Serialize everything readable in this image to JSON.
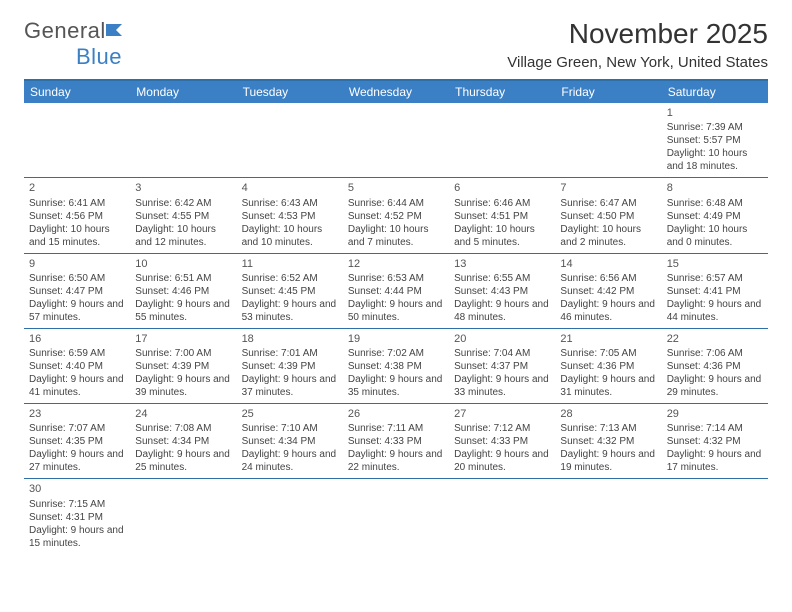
{
  "logo": {
    "textA": "General",
    "textB": "Blue"
  },
  "title": "November 2025",
  "location": "Village Green, New York, United States",
  "colors": {
    "headerBg": "#3b7fc4",
    "border": "#2f6fa8",
    "text": "#444444",
    "bg": "#ffffff"
  },
  "font": {
    "family": "Arial",
    "daynum_size": 11,
    "info_size": 10,
    "title_size": 28,
    "location_size": 15,
    "dayhead_size": 12
  },
  "days": [
    "Sunday",
    "Monday",
    "Tuesday",
    "Wednesday",
    "Thursday",
    "Friday",
    "Saturday"
  ],
  "labels": {
    "sunrise": "Sunrise:",
    "sunset": "Sunset:",
    "daylight": "Daylight:"
  },
  "weeks": [
    [
      null,
      null,
      null,
      null,
      null,
      null,
      {
        "n": "1",
        "sr": "7:39 AM",
        "ss": "5:57 PM",
        "dl": "10 hours and 18 minutes."
      }
    ],
    [
      {
        "n": "2",
        "sr": "6:41 AM",
        "ss": "4:56 PM",
        "dl": "10 hours and 15 minutes."
      },
      {
        "n": "3",
        "sr": "6:42 AM",
        "ss": "4:55 PM",
        "dl": "10 hours and 12 minutes."
      },
      {
        "n": "4",
        "sr": "6:43 AM",
        "ss": "4:53 PM",
        "dl": "10 hours and 10 minutes."
      },
      {
        "n": "5",
        "sr": "6:44 AM",
        "ss": "4:52 PM",
        "dl": "10 hours and 7 minutes."
      },
      {
        "n": "6",
        "sr": "6:46 AM",
        "ss": "4:51 PM",
        "dl": "10 hours and 5 minutes."
      },
      {
        "n": "7",
        "sr": "6:47 AM",
        "ss": "4:50 PM",
        "dl": "10 hours and 2 minutes."
      },
      {
        "n": "8",
        "sr": "6:48 AM",
        "ss": "4:49 PM",
        "dl": "10 hours and 0 minutes."
      }
    ],
    [
      {
        "n": "9",
        "sr": "6:50 AM",
        "ss": "4:47 PM",
        "dl": "9 hours and 57 minutes."
      },
      {
        "n": "10",
        "sr": "6:51 AM",
        "ss": "4:46 PM",
        "dl": "9 hours and 55 minutes."
      },
      {
        "n": "11",
        "sr": "6:52 AM",
        "ss": "4:45 PM",
        "dl": "9 hours and 53 minutes."
      },
      {
        "n": "12",
        "sr": "6:53 AM",
        "ss": "4:44 PM",
        "dl": "9 hours and 50 minutes."
      },
      {
        "n": "13",
        "sr": "6:55 AM",
        "ss": "4:43 PM",
        "dl": "9 hours and 48 minutes."
      },
      {
        "n": "14",
        "sr": "6:56 AM",
        "ss": "4:42 PM",
        "dl": "9 hours and 46 minutes."
      },
      {
        "n": "15",
        "sr": "6:57 AM",
        "ss": "4:41 PM",
        "dl": "9 hours and 44 minutes."
      }
    ],
    [
      {
        "n": "16",
        "sr": "6:59 AM",
        "ss": "4:40 PM",
        "dl": "9 hours and 41 minutes."
      },
      {
        "n": "17",
        "sr": "7:00 AM",
        "ss": "4:39 PM",
        "dl": "9 hours and 39 minutes."
      },
      {
        "n": "18",
        "sr": "7:01 AM",
        "ss": "4:39 PM",
        "dl": "9 hours and 37 minutes."
      },
      {
        "n": "19",
        "sr": "7:02 AM",
        "ss": "4:38 PM",
        "dl": "9 hours and 35 minutes."
      },
      {
        "n": "20",
        "sr": "7:04 AM",
        "ss": "4:37 PM",
        "dl": "9 hours and 33 minutes."
      },
      {
        "n": "21",
        "sr": "7:05 AM",
        "ss": "4:36 PM",
        "dl": "9 hours and 31 minutes."
      },
      {
        "n": "22",
        "sr": "7:06 AM",
        "ss": "4:36 PM",
        "dl": "9 hours and 29 minutes."
      }
    ],
    [
      {
        "n": "23",
        "sr": "7:07 AM",
        "ss": "4:35 PM",
        "dl": "9 hours and 27 minutes."
      },
      {
        "n": "24",
        "sr": "7:08 AM",
        "ss": "4:34 PM",
        "dl": "9 hours and 25 minutes."
      },
      {
        "n": "25",
        "sr": "7:10 AM",
        "ss": "4:34 PM",
        "dl": "9 hours and 24 minutes."
      },
      {
        "n": "26",
        "sr": "7:11 AM",
        "ss": "4:33 PM",
        "dl": "9 hours and 22 minutes."
      },
      {
        "n": "27",
        "sr": "7:12 AM",
        "ss": "4:33 PM",
        "dl": "9 hours and 20 minutes."
      },
      {
        "n": "28",
        "sr": "7:13 AM",
        "ss": "4:32 PM",
        "dl": "9 hours and 19 minutes."
      },
      {
        "n": "29",
        "sr": "7:14 AM",
        "ss": "4:32 PM",
        "dl": "9 hours and 17 minutes."
      }
    ],
    [
      {
        "n": "30",
        "sr": "7:15 AM",
        "ss": "4:31 PM",
        "dl": "9 hours and 15 minutes."
      },
      null,
      null,
      null,
      null,
      null,
      null
    ]
  ]
}
